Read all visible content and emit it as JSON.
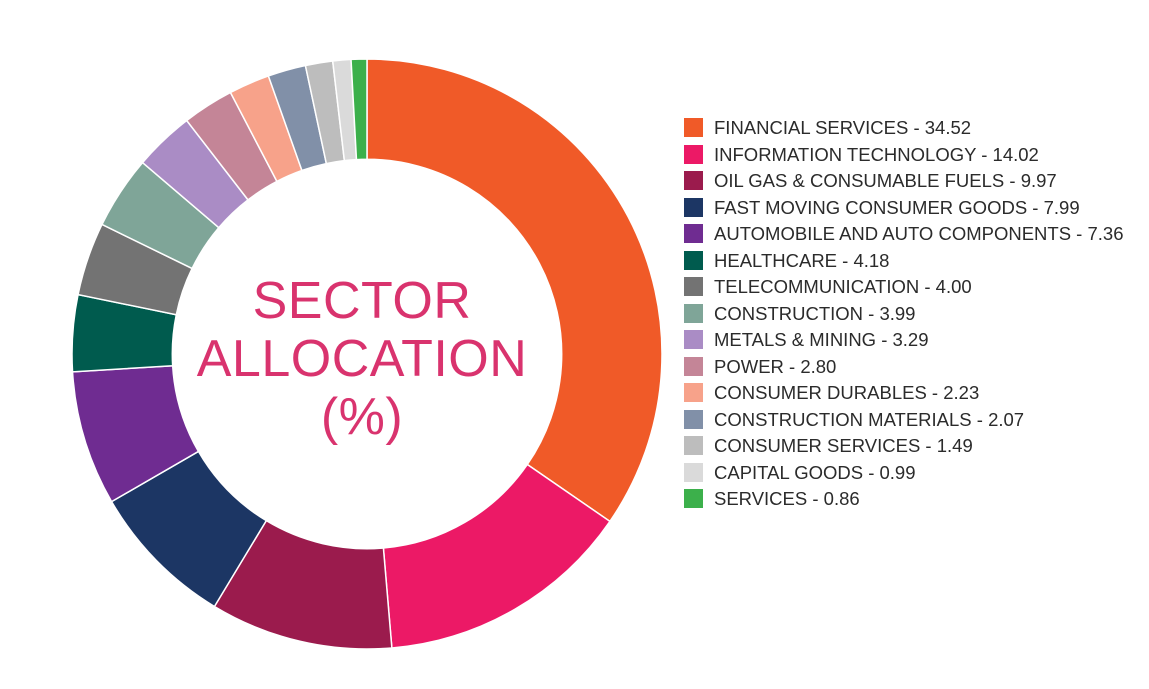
{
  "chart_data": {
    "type": "pie",
    "title_lines": [
      "SECTOR",
      "ALLOCATION",
      "(%)"
    ],
    "slices": [
      {
        "label": "FINANCIAL SERVICES - 34.52",
        "value": 34.52,
        "color": "#f05a28"
      },
      {
        "label": "INFORMATION TECHNOLOGY - 14.02",
        "value": 14.02,
        "color": "#ec1966"
      },
      {
        "label": "OIL GAS & CONSUMABLE FUELS - 9.97",
        "value": 9.97,
        "color": "#9b1b4d"
      },
      {
        "label": "FAST MOVING CONSUMER GOODS - 7.99",
        "value": 7.99,
        "color": "#1c3664"
      },
      {
        "label": "AUTOMOBILE AND AUTO COMPONENTS - 7.36",
        "value": 7.36,
        "color": "#6f2c91"
      },
      {
        "label": "HEALTHCARE - 4.18",
        "value": 4.18,
        "color": "#005b4e"
      },
      {
        "label": "TELECOMMUNICATION - 4.00",
        "value": 4.0,
        "color": "#737373"
      },
      {
        "label": "CONSTRUCTION - 3.99",
        "value": 3.99,
        "color": "#7fa598"
      },
      {
        "label": "METALS & MINING - 3.29",
        "value": 3.29,
        "color": "#aa8cc5"
      },
      {
        "label": "POWER - 2.80",
        "value": 2.8,
        "color": "#c48597"
      },
      {
        "label": "CONSUMER DURABLES - 2.23",
        "value": 2.23,
        "color": "#f7a28a"
      },
      {
        "label": "CONSTRUCTION MATERIALS - 2.07",
        "value": 2.07,
        "color": "#8190a8"
      },
      {
        "label": "CONSUMER SERVICES - 1.49",
        "value": 1.49,
        "color": "#bdbdbd"
      },
      {
        "label": "CAPITAL GOODS - 0.99",
        "value": 0.99,
        "color": "#dadada"
      },
      {
        "label": "SERVICES - 0.86",
        "value": 0.86,
        "color": "#3cb04b"
      }
    ],
    "inner_radius_ratio": 0.66,
    "legend_position": "right"
  }
}
